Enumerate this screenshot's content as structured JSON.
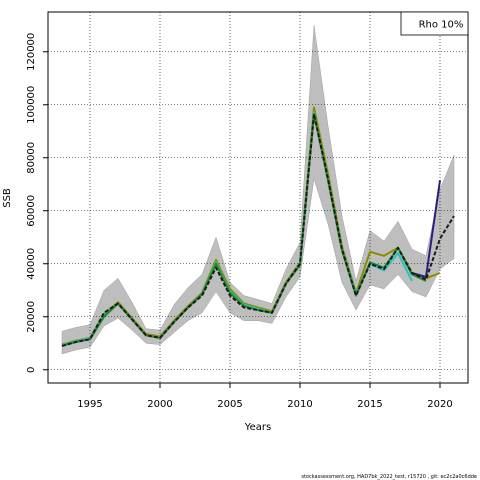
{
  "chart_data": {
    "type": "line",
    "xlabel": "Years",
    "ylabel": "SSB",
    "xlim": [
      1992,
      2022
    ],
    "ylim": [
      -5000,
      135000
    ],
    "xticks": [
      1995,
      2000,
      2005,
      2010,
      2015,
      2020
    ],
    "yticks": [
      0,
      20000,
      40000,
      60000,
      80000,
      100000,
      120000
    ],
    "grid": true,
    "legend": {
      "text": "Rho 10%",
      "position": "top-right"
    },
    "confidence_band": {
      "x": [
        1993,
        1994,
        1995,
        1996,
        1997,
        1998,
        1999,
        2000,
        2001,
        2002,
        2003,
        2004,
        2005,
        2006,
        2007,
        2008,
        2009,
        2010,
        2011,
        2012,
        2013,
        2014,
        2015,
        2016,
        2017,
        2018,
        2019,
        2020,
        2021
      ],
      "lower": [
        6000,
        7500,
        8500,
        16500,
        19500,
        15000,
        10000,
        9500,
        14000,
        18500,
        21500,
        29500,
        21500,
        18500,
        18500,
        17500,
        27500,
        35000,
        72000,
        55000,
        33000,
        22500,
        32000,
        30500,
        36000,
        29500,
        27500,
        38000,
        42000
      ],
      "upper": [
        14500,
        16000,
        17000,
        30000,
        34500,
        25500,
        15500,
        15000,
        24500,
        31000,
        36000,
        50000,
        33000,
        28000,
        26500,
        25000,
        38000,
        48000,
        130000,
        92000,
        58000,
        33500,
        52500,
        48500,
        56000,
        45500,
        43000,
        68000,
        81000
      ],
      "color": "#bebebe"
    },
    "series": [
      {
        "color": "#8b8b00",
        "x": [
          1993,
          1994,
          1995,
          1996,
          1997,
          1998,
          1999,
          2000,
          2001,
          2002,
          2003,
          2004,
          2005,
          2006,
          2007,
          2008,
          2009,
          2010,
          2011,
          2012,
          2013,
          2014,
          2015,
          2016,
          2017,
          2018,
          2019,
          2020
        ],
        "y": [
          9500,
          11000,
          12000,
          21000,
          25500,
          19500,
          13500,
          12500,
          18500,
          24000,
          29000,
          41500,
          30500,
          25000,
          23500,
          22000,
          33000,
          40500,
          99000,
          74000,
          46500,
          29000,
          44500,
          43000,
          46000,
          36500,
          34500,
          36500
        ]
      },
      {
        "color": "#22c4c4",
        "x": [
          1993,
          1994,
          1995,
          1996,
          1997,
          1998,
          1999,
          2000,
          2001,
          2002,
          2003,
          2004,
          2005,
          2006,
          2007,
          2008,
          2009,
          2010,
          2011,
          2012,
          2013,
          2014,
          2015,
          2016,
          2017,
          2018
        ],
        "y": [
          9200,
          10800,
          11800,
          20500,
          25000,
          19000,
          13000,
          12000,
          18000,
          23500,
          28500,
          40500,
          29500,
          24500,
          23000,
          21500,
          32500,
          40000,
          97000,
          72000,
          45500,
          28500,
          40000,
          37500,
          44000,
          33500
        ]
      },
      {
        "color": "#1d8a2e",
        "x": [
          1993,
          1994,
          1995,
          1996,
          1997,
          1998,
          1999,
          2000,
          2001,
          2002,
          2003,
          2004,
          2005,
          2006,
          2007,
          2008,
          2009,
          2010,
          2011,
          2012,
          2013,
          2014,
          2015,
          2016,
          2017,
          2018,
          2019
        ],
        "y": [
          9000,
          10500,
          11500,
          20000,
          25000,
          19000,
          13000,
          12000,
          18000,
          23500,
          28500,
          40000,
          29000,
          24000,
          22500,
          21500,
          32500,
          39500,
          96500,
          71500,
          45000,
          28000,
          40500,
          38500,
          46000,
          36000,
          33500
        ]
      },
      {
        "color": "#2a1f7e",
        "x": [
          2018,
          2019,
          2020
        ],
        "y": [
          36500,
          35000,
          71500
        ]
      },
      {
        "color": "#1a1a1a",
        "dashed": true,
        "x": [
          1993,
          1994,
          1995,
          1996,
          1997,
          1998,
          1999,
          2000,
          2001,
          2002,
          2003,
          2004,
          2005,
          2006,
          2007,
          2008,
          2009,
          2010,
          2011,
          2012,
          2013,
          2014,
          2015,
          2016,
          2017,
          2018,
          2019,
          2020,
          2021
        ],
        "y": [
          9000,
          10500,
          11500,
          21500,
          25000,
          19000,
          13000,
          12000,
          18000,
          23500,
          28000,
          38500,
          28000,
          23500,
          22500,
          21500,
          32500,
          40000,
          96500,
          72000,
          45500,
          28000,
          40000,
          38000,
          46000,
          36500,
          34000,
          49500,
          58000
        ]
      }
    ]
  },
  "footer": {
    "text": "stockassessment.org, HAD7bk_2022_test, r15720 , git: ec2c2a0c6dde"
  }
}
